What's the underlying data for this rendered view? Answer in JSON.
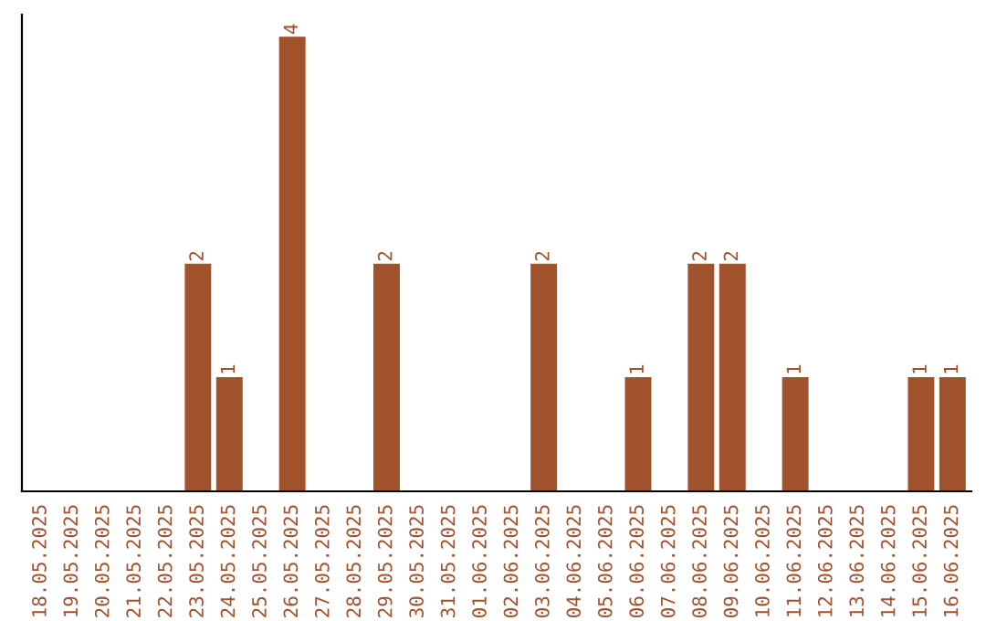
{
  "chart_data": {
    "type": "bar",
    "categories": [
      "18.05.2025",
      "19.05.2025",
      "20.05.2025",
      "21.05.2025",
      "22.05.2025",
      "23.05.2025",
      "24.05.2025",
      "25.05.2025",
      "26.05.2025",
      "27.05.2025",
      "28.05.2025",
      "29.05.2025",
      "30.05.2025",
      "31.05.2025",
      "01.06.2025",
      "02.06.2025",
      "03.06.2025",
      "04.06.2025",
      "05.06.2025",
      "06.06.2025",
      "07.06.2025",
      "08.06.2025",
      "09.06.2025",
      "10.06.2025",
      "11.06.2025",
      "12.06.2025",
      "13.06.2025",
      "14.06.2025",
      "15.06.2025",
      "16.06.2025"
    ],
    "values": [
      0,
      0,
      0,
      0,
      0,
      2,
      1,
      0,
      4,
      0,
      0,
      2,
      0,
      0,
      0,
      0,
      2,
      0,
      0,
      1,
      0,
      2,
      2,
      0,
      1,
      0,
      0,
      0,
      1,
      1
    ],
    "value_labels": [
      null,
      null,
      null,
      null,
      null,
      "2",
      "1",
      null,
      "4",
      null,
      null,
      "2",
      null,
      null,
      null,
      null,
      "2",
      null,
      null,
      "1",
      null,
      "2",
      "2",
      null,
      "1",
      null,
      null,
      null,
      "1",
      "1"
    ],
    "color": "#a0522d",
    "ylim": [
      0,
      4.2
    ],
    "tick_labels": "x",
    "grid": false,
    "legend": false
  }
}
